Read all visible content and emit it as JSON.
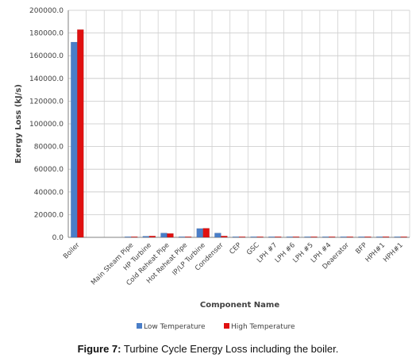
{
  "chart_data": {
    "type": "bar",
    "title": "",
    "xlabel": "Component Name",
    "ylabel": "Exergy Loss (kJ/s)",
    "ylim": [
      0,
      200000
    ],
    "yticks": [
      "0.0",
      "20000.0",
      "40000.0",
      "60000.0",
      "80000.0",
      "100000.0",
      "120000.0",
      "140000.0",
      "160000.0",
      "180000.0",
      "200000.0"
    ],
    "grid": true,
    "legend_position": "bottom",
    "categories": [
      "Boiler",
      "",
      "",
      "Main Steam Pipe",
      "HP Turbine",
      "Cold Reheat Pipe",
      "Hot Reheat Pipe",
      "IP/LP Turbine",
      "Condenser",
      "CEP",
      "GSC",
      "LPH #7",
      "LPH #6",
      "LPH #5",
      "LPH #4",
      "Deaerator",
      "BFP",
      "HPH#1",
      "HPH#1"
    ],
    "series": [
      {
        "name": "Low Temperature",
        "color": "#4a7ec8",
        "values": [
          172000,
          0,
          0,
          300,
          1000,
          3800,
          400,
          7800,
          3800,
          200,
          100,
          100,
          100,
          100,
          100,
          400,
          200,
          500,
          100
        ]
      },
      {
        "name": "High Temperature",
        "color": "#e01010",
        "values": [
          183000,
          0,
          0,
          400,
          1200,
          3400,
          500,
          8000,
          1200,
          200,
          100,
          100,
          100,
          100,
          100,
          500,
          200,
          600,
          100
        ]
      }
    ]
  },
  "caption": {
    "prefix": "Figure 7:",
    "text": " Turbine Cycle Energy Loss including the boiler."
  }
}
